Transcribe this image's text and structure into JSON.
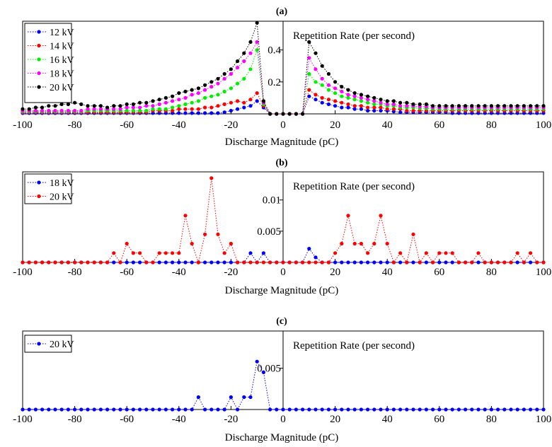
{
  "chart_data": [
    {
      "panel_label": "(a)",
      "type": "scatter",
      "xlabel": "Discharge Magnitude (pC)",
      "ylabel": "Repetition Rate (per second)",
      "xlim": [
        -100,
        100
      ],
      "ylim": [
        0,
        0.58
      ],
      "xticks": [
        -100,
        -80,
        -60,
        -40,
        -20,
        0,
        20,
        40,
        60,
        80,
        100
      ],
      "yticks": [
        0.2,
        0.4
      ],
      "ytick_labels": [
        "0.2",
        "0.4"
      ],
      "legend": "top-left",
      "grid": false,
      "x": [
        -100,
        -97.5,
        -95,
        -92.5,
        -90,
        -87.5,
        -85,
        -82.5,
        -80,
        -77.5,
        -75,
        -72.5,
        -70,
        -67.5,
        -65,
        -62.5,
        -60,
        -57.5,
        -55,
        -52.5,
        -50,
        -47.5,
        -45,
        -42.5,
        -40,
        -37.5,
        -35,
        -32.5,
        -30,
        -27.5,
        -25,
        -22.5,
        -20,
        -17.5,
        -15,
        -12.5,
        -10,
        -7.5,
        -5,
        -2.5,
        0,
        2.5,
        5,
        7.5,
        10,
        12.5,
        15,
        17.5,
        20,
        22.5,
        25,
        27.5,
        30,
        32.5,
        35,
        37.5,
        40,
        42.5,
        45,
        47.5,
        50,
        52.5,
        55,
        57.5,
        60,
        62.5,
        65,
        67.5,
        70,
        72.5,
        75,
        77.5,
        80,
        82.5,
        85,
        87.5,
        90,
        92.5,
        95,
        97.5,
        100
      ],
      "series": [
        {
          "name": "12 kV",
          "color": "#0000ff",
          "values": [
            0.005,
            0.005,
            0.005,
            0.005,
            0.005,
            0.005,
            0.005,
            0.005,
            0.005,
            0.005,
            0.005,
            0.005,
            0.005,
            0.005,
            0.005,
            0.005,
            0.005,
            0.005,
            0.005,
            0.005,
            0.005,
            0.005,
            0.005,
            0.005,
            0.005,
            0.005,
            0.005,
            0.005,
            0.005,
            0.005,
            0.005,
            0.01,
            0.02,
            0.03,
            0.04,
            0.05,
            0.08,
            0.04,
            0,
            0,
            0,
            0,
            0,
            0,
            0.11,
            0.09,
            0.07,
            0.06,
            0.05,
            0.04,
            0.04,
            0.03,
            0.03,
            0.02,
            0.02,
            0.02,
            0.02,
            0.015,
            0.01,
            0.01,
            0.01,
            0.01,
            0.01,
            0.01,
            0.01,
            0.01,
            0.005,
            0.005,
            0.005,
            0.005,
            0.005,
            0.005,
            0.005,
            0.005,
            0.005,
            0.005,
            0.005,
            0.005,
            0.005,
            0.005,
            0.005
          ]
        },
        {
          "name": "14 kV",
          "color": "#ff0000",
          "values": [
            0.01,
            0.01,
            0.01,
            0.01,
            0.01,
            0.01,
            0.01,
            0.01,
            0.01,
            0.01,
            0.01,
            0.01,
            0.01,
            0.01,
            0.01,
            0.01,
            0.01,
            0.01,
            0.01,
            0.01,
            0.02,
            0.02,
            0.02,
            0.02,
            0.03,
            0.03,
            0.03,
            0.03,
            0.04,
            0.04,
            0.05,
            0.06,
            0.07,
            0.08,
            0.07,
            0.09,
            0.13,
            0.05,
            0,
            0,
            0,
            0,
            0,
            0,
            0.15,
            0.12,
            0.1,
            0.09,
            0.08,
            0.07,
            0.06,
            0.05,
            0.05,
            0.04,
            0.04,
            0.04,
            0.03,
            0.03,
            0.03,
            0.02,
            0.02,
            0.02,
            0.02,
            0.02,
            0.02,
            0.02,
            0.02,
            0.02,
            0.02,
            0.02,
            0.02,
            0.02,
            0.02,
            0.02,
            0.02,
            0.02,
            0.02,
            0.02,
            0.02,
            0.02,
            0.02
          ]
        },
        {
          "name": "16 kV",
          "color": "#00ee00",
          "values": [
            0.015,
            0.015,
            0.015,
            0.015,
            0.015,
            0.015,
            0.015,
            0.015,
            0.015,
            0.015,
            0.02,
            0.02,
            0.02,
            0.02,
            0.02,
            0.02,
            0.02,
            0.02,
            0.02,
            0.02,
            0.03,
            0.03,
            0.03,
            0.04,
            0.05,
            0.06,
            0.07,
            0.08,
            0.1,
            0.11,
            0.12,
            0.14,
            0.16,
            0.19,
            0.22,
            0.28,
            0.4,
            0.06,
            0,
            0,
            0,
            0,
            0,
            0,
            0.25,
            0.2,
            0.18,
            0.15,
            0.13,
            0.11,
            0.1,
            0.09,
            0.08,
            0.07,
            0.06,
            0.06,
            0.05,
            0.05,
            0.04,
            0.04,
            0.04,
            0.035,
            0.035,
            0.03,
            0.03,
            0.03,
            0.03,
            0.03,
            0.03,
            0.03,
            0.03,
            0.03,
            0.03,
            0.03,
            0.03,
            0.03,
            0.03,
            0.03,
            0.03,
            0.03,
            0.03
          ]
        },
        {
          "name": "18 kV",
          "color": "#ff00ff",
          "values": [
            0.02,
            0.02,
            0.02,
            0.02,
            0.02,
            0.02,
            0.02,
            0.02,
            0.02,
            0.02,
            0.03,
            0.03,
            0.03,
            0.03,
            0.03,
            0.03,
            0.04,
            0.04,
            0.04,
            0.05,
            0.05,
            0.06,
            0.07,
            0.08,
            0.09,
            0.1,
            0.12,
            0.13,
            0.15,
            0.17,
            0.19,
            0.22,
            0.25,
            0.29,
            0.33,
            0.38,
            0.45,
            0.07,
            0,
            0,
            0,
            0,
            0,
            0,
            0.35,
            0.28,
            0.22,
            0.18,
            0.16,
            0.14,
            0.12,
            0.11,
            0.1,
            0.09,
            0.08,
            0.07,
            0.06,
            0.06,
            0.05,
            0.05,
            0.05,
            0.045,
            0.045,
            0.04,
            0.04,
            0.04,
            0.04,
            0.04,
            0.04,
            0.04,
            0.04,
            0.04,
            0.04,
            0.04,
            0.04,
            0.04,
            0.04,
            0.04,
            0.04,
            0.04,
            0.04
          ]
        },
        {
          "name": "20 kV",
          "color": "#000000",
          "values": [
            0.03,
            0.03,
            0.04,
            0.04,
            0.05,
            0.05,
            0.06,
            0.06,
            0.07,
            0.06,
            0.05,
            0.05,
            0.05,
            0.04,
            0.05,
            0.05,
            0.06,
            0.06,
            0.07,
            0.07,
            0.08,
            0.09,
            0.1,
            0.11,
            0.13,
            0.14,
            0.15,
            0.16,
            0.18,
            0.2,
            0.22,
            0.25,
            0.28,
            0.33,
            0.38,
            0.45,
            0.57,
            0.08,
            0,
            0,
            0,
            0,
            0,
            0,
            0.45,
            0.38,
            0.3,
            0.25,
            0.2,
            0.17,
            0.15,
            0.13,
            0.12,
            0.11,
            0.1,
            0.09,
            0.08,
            0.08,
            0.07,
            0.07,
            0.06,
            0.06,
            0.06,
            0.05,
            0.05,
            0.05,
            0.05,
            0.05,
            0.05,
            0.05,
            0.05,
            0.05,
            0.05,
            0.05,
            0.05,
            0.05,
            0.05,
            0.05,
            0.05,
            0.05,
            0.05
          ]
        }
      ]
    },
    {
      "panel_label": "(b)",
      "type": "scatter",
      "xlabel": "Discharge Magnitude (pC)",
      "ylabel": "Repetition Rate (per second)",
      "xlim": [
        -100,
        100
      ],
      "ylim": [
        0,
        0.0145
      ],
      "xticks": [
        -100,
        -80,
        -60,
        -40,
        -20,
        0,
        20,
        40,
        60,
        80,
        100
      ],
      "yticks": [
        0.005,
        0.01
      ],
      "ytick_labels": [
        "0.005",
        "0.01"
      ],
      "legend": "top-left",
      "grid": false,
      "x": [
        -100,
        -97.5,
        -95,
        -92.5,
        -90,
        -87.5,
        -85,
        -82.5,
        -80,
        -77.5,
        -75,
        -72.5,
        -70,
        -67.5,
        -65,
        -62.5,
        -60,
        -57.5,
        -55,
        -52.5,
        -50,
        -47.5,
        -45,
        -42.5,
        -40,
        -37.5,
        -35,
        -32.5,
        -30,
        -27.5,
        -25,
        -22.5,
        -20,
        -17.5,
        -15,
        -12.5,
        -10,
        -7.5,
        -5,
        -2.5,
        0,
        2.5,
        5,
        7.5,
        10,
        12.5,
        15,
        17.5,
        20,
        22.5,
        25,
        27.5,
        30,
        32.5,
        35,
        37.5,
        40,
        42.5,
        45,
        47.5,
        50,
        52.5,
        55,
        57.5,
        60,
        62.5,
        65,
        67.5,
        70,
        72.5,
        75,
        77.5,
        80,
        82.5,
        85,
        87.5,
        90,
        92.5,
        95,
        97.5,
        100
      ],
      "series": [
        {
          "name": "18 kV",
          "color": "#0000ff",
          "values": [
            0,
            0,
            0,
            0,
            0,
            0,
            0,
            0,
            0,
            0,
            0,
            0,
            0,
            0,
            0,
            0,
            0,
            0,
            0,
            0,
            0,
            0,
            0,
            0,
            0,
            0,
            0,
            0,
            0,
            0,
            0,
            0,
            0,
            0,
            0,
            0.0015,
            0,
            0.0015,
            0,
            0,
            0,
            0,
            0,
            0,
            0.0022,
            0.0008,
            0,
            0,
            0,
            0,
            0,
            0,
            0,
            0,
            0,
            0,
            0,
            0,
            0,
            0,
            0,
            0,
            0,
            0,
            0,
            0,
            0,
            0,
            0,
            0,
            0,
            0,
            0,
            0,
            0,
            0,
            0,
            0,
            0,
            0,
            0
          ]
        },
        {
          "name": "20 kV",
          "color": "#ff0000",
          "values": [
            0,
            0,
            0,
            0,
            0,
            0,
            0,
            0,
            0,
            0,
            0,
            0,
            0,
            0,
            0.0015,
            0,
            0.003,
            0.0015,
            0.0015,
            0,
            0,
            0.0015,
            0.0015,
            0.0015,
            0.0015,
            0.0075,
            0.003,
            0,
            0.0045,
            0.0135,
            0.0045,
            0.0015,
            0.003,
            0,
            0,
            0,
            0,
            0,
            0,
            0,
            0,
            0,
            0,
            0,
            0,
            0,
            0,
            0,
            0.0015,
            0.003,
            0.0075,
            0.003,
            0.003,
            0.0015,
            0.003,
            0.0075,
            0.003,
            0,
            0.0015,
            0,
            0.0045,
            0,
            0.0015,
            0,
            0.0015,
            0.0015,
            0.0015,
            0,
            0,
            0,
            0.0015,
            0,
            0,
            0,
            0,
            0,
            0.0015,
            0,
            0.0015,
            0,
            0
          ]
        }
      ]
    },
    {
      "panel_label": "(c)",
      "type": "scatter",
      "xlabel": "Discharge Magnitude (pC)",
      "ylabel": "Repetition Rate (per second)",
      "xlim": [
        -100,
        100
      ],
      "ylim": [
        0,
        0.0095
      ],
      "xticks": [
        -100,
        -80,
        -60,
        -40,
        -20,
        0,
        20,
        40,
        60,
        80,
        100
      ],
      "yticks": [
        0.005
      ],
      "ytick_labels": [
        "0.005"
      ],
      "legend": "top-left",
      "grid": false,
      "x": [
        -100,
        -97.5,
        -95,
        -92.5,
        -90,
        -87.5,
        -85,
        -82.5,
        -80,
        -77.5,
        -75,
        -72.5,
        -70,
        -67.5,
        -65,
        -62.5,
        -60,
        -57.5,
        -55,
        -52.5,
        -50,
        -47.5,
        -45,
        -42.5,
        -40,
        -37.5,
        -35,
        -32.5,
        -30,
        -27.5,
        -25,
        -22.5,
        -20,
        -17.5,
        -15,
        -12.5,
        -10,
        -7.5,
        -5,
        -2.5,
        0,
        2.5,
        5,
        7.5,
        10,
        12.5,
        15,
        17.5,
        20,
        22.5,
        25,
        27.5,
        30,
        32.5,
        35,
        37.5,
        40,
        42.5,
        45,
        47.5,
        50,
        52.5,
        55,
        57.5,
        60,
        62.5,
        65,
        67.5,
        70,
        72.5,
        75,
        77.5,
        80,
        82.5,
        85,
        87.5,
        90,
        92.5,
        95,
        97.5,
        100
      ],
      "series": [
        {
          "name": "20 kV",
          "color": "#0000ff",
          "values": [
            0,
            0,
            0,
            0,
            0,
            0,
            0,
            0,
            0,
            0,
            0,
            0,
            0,
            0,
            0,
            0,
            0,
            0,
            0,
            0,
            0,
            0,
            0,
            0,
            0,
            0,
            0,
            0.0015,
            0,
            0,
            0,
            0,
            0.0015,
            0,
            0.0015,
            0.0015,
            0.0058,
            0.0045,
            0,
            0,
            0,
            0,
            0,
            0,
            0,
            0,
            0,
            0,
            0,
            0,
            0,
            0,
            0,
            0,
            0,
            0,
            0,
            0,
            0,
            0,
            0,
            0,
            0,
            0,
            0,
            0,
            0,
            0,
            0,
            0,
            0,
            0,
            0,
            0,
            0,
            0,
            0,
            0,
            0,
            0,
            0
          ]
        }
      ]
    }
  ]
}
